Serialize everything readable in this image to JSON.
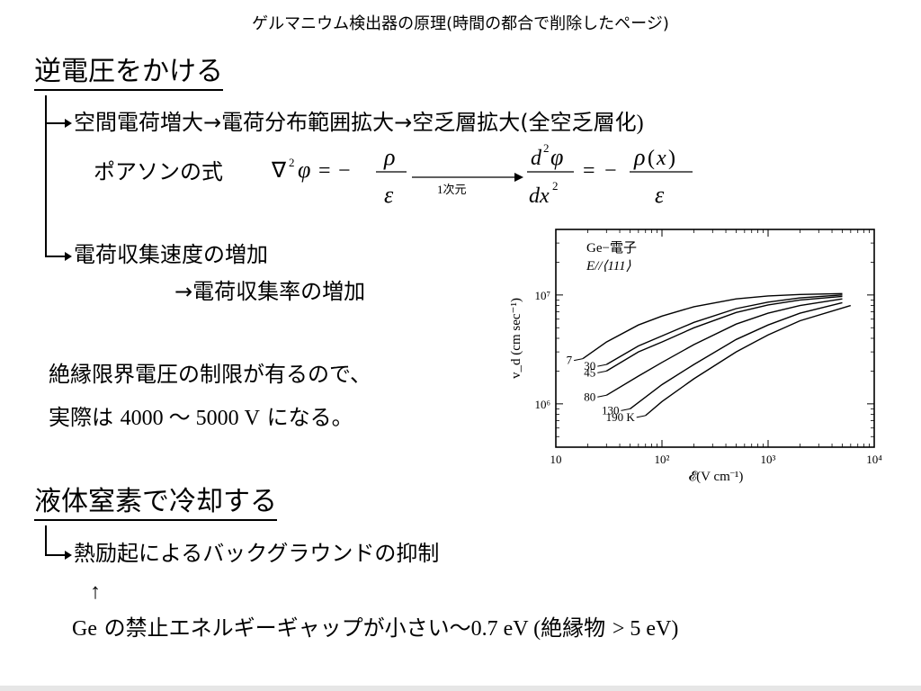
{
  "header": {
    "title": "ゲルマニウム検出器の原理(時間の都合で削除したページ)"
  },
  "section1": {
    "heading": "逆電圧をかける",
    "line1_a": "空間電荷増大→電荷分布範囲拡大→空乏層拡大(",
    "line1_b": "全空乏層化",
    "line1_c": ")",
    "poisson_label": "ポアソンの式",
    "formula_step_label": "1次元",
    "line2": "電荷収集速度の増加",
    "line3": "→電荷収集率の増加",
    "insulation_line1": "絶縁限界電圧の制限が有るので、",
    "insulation_line2_a": "実際は",
    "insulation_line2_b": "4000 〜 5000 V",
    "insulation_line2_c": "になる。"
  },
  "section2": {
    "heading": "液体窒素で冷却する",
    "line1": "熱励起によるバックグラウンドの抑制",
    "up_arrow": "↑",
    "line2_a": "Ge",
    "line2_b": "の禁止エネルギーギャップが小さい〜",
    "line2_c": "0.7 eV (",
    "line2_d": "絶縁物",
    "line2_e": "> 5 eV)"
  },
  "chart_data": {
    "type": "line",
    "legend_title": "Ge−電子",
    "legend_direction": "E//⟨111⟩",
    "xlabel": "𝓔(V cm⁻¹)",
    "ylabel": "v_d (cm sec⁻¹)",
    "x_scale": "log",
    "y_scale": "log",
    "xlim": [
      10,
      10000
    ],
    "ylim": [
      400000,
      40000000
    ],
    "x_ticks": [
      "10",
      "10²",
      "10³",
      "10⁴"
    ],
    "y_ticks": [
      "10⁶",
      "10⁷"
    ],
    "series": [
      {
        "name": "7",
        "x": [
          18,
          30,
          60,
          100,
          200,
          500,
          1000,
          2000,
          5000
        ],
        "y": [
          2600000,
          3700000,
          5300000,
          6400000,
          7800000,
          9200000,
          9800000,
          10100000,
          10300000
        ]
      },
      {
        "name": "30",
        "x": [
          30,
          60,
          100,
          200,
          500,
          1000,
          2000,
          5000
        ],
        "y": [
          2300000,
          3400000,
          4200000,
          5600000,
          7500000,
          8600000,
          9400000,
          10000000
        ]
      },
      {
        "name": "45",
        "x": [
          30,
          60,
          100,
          200,
          500,
          1000,
          2000,
          5000
        ],
        "y": [
          2000000,
          3000000,
          3700000,
          5000000,
          6900000,
          8100000,
          9000000,
          9700000
        ]
      },
      {
        "name": "80",
        "x": [
          30,
          60,
          100,
          200,
          500,
          1000,
          2000,
          5000
        ],
        "y": [
          1200000,
          1800000,
          2400000,
          3500000,
          5400000,
          6800000,
          8000000,
          9200000
        ]
      },
      {
        "name": "130",
        "x": [
          50,
          100,
          200,
          500,
          1000,
          2000,
          5000
        ],
        "y": [
          900000,
          1500000,
          2300000,
          3900000,
          5300000,
          6800000,
          8500000
        ]
      },
      {
        "name": "190 K",
        "x": [
          70,
          100,
          200,
          500,
          1000,
          2000,
          6000
        ],
        "y": [
          780000,
          1050000,
          1700000,
          3000000,
          4300000,
          5800000,
          8000000
        ]
      }
    ]
  }
}
